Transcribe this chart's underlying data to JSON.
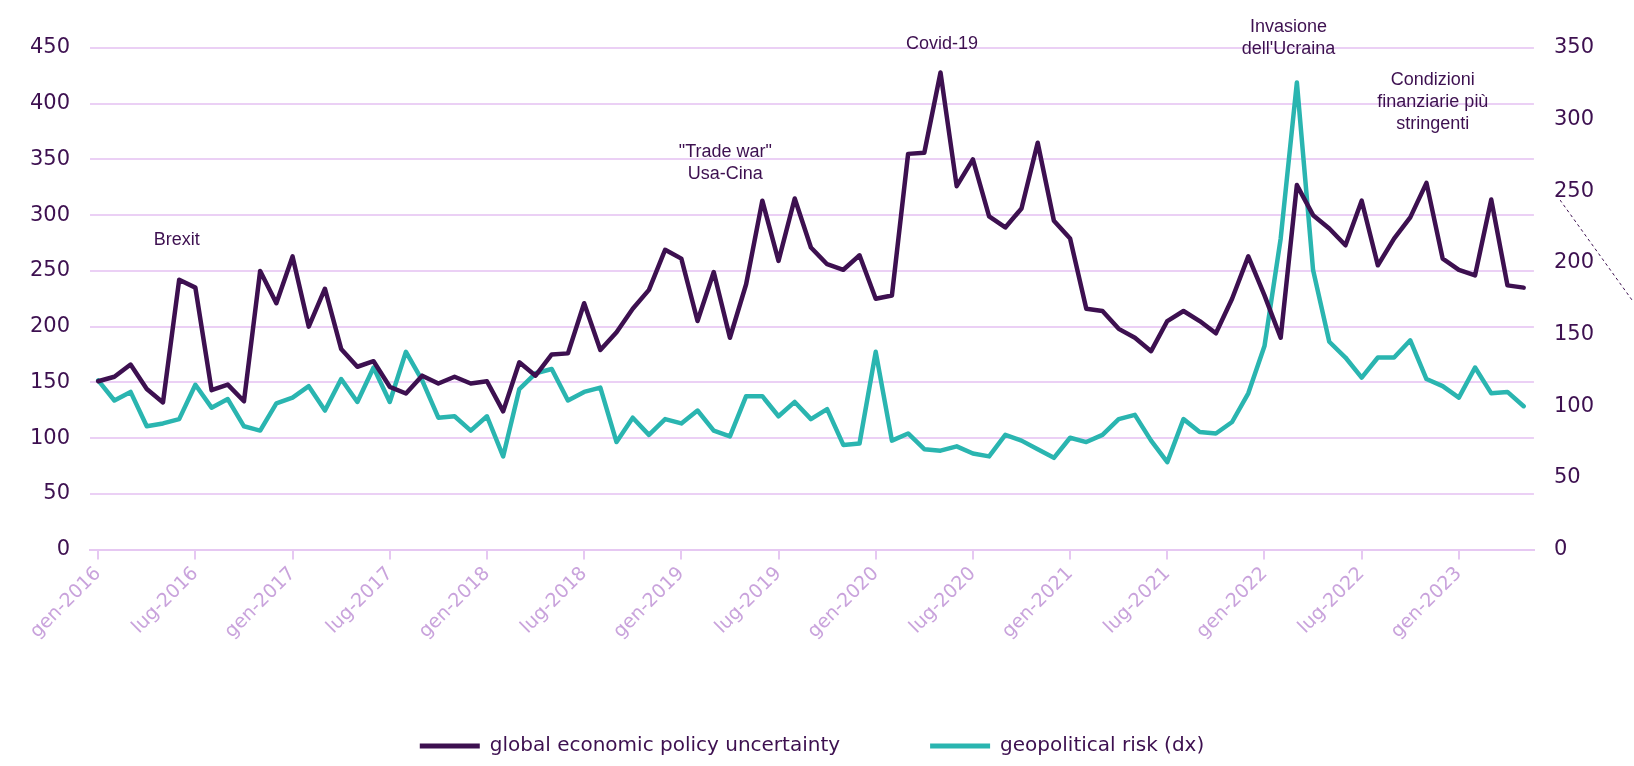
{
  "chart_data": {
    "type": "line",
    "x": [
      "2016-01",
      "2016-02",
      "2016-03",
      "2016-04",
      "2016-05",
      "2016-06",
      "2016-07",
      "2016-08",
      "2016-09",
      "2016-10",
      "2016-11",
      "2016-12",
      "2017-01",
      "2017-02",
      "2017-03",
      "2017-04",
      "2017-05",
      "2017-06",
      "2017-07",
      "2017-08",
      "2017-09",
      "2017-10",
      "2017-11",
      "2017-12",
      "2018-01",
      "2018-02",
      "2018-03",
      "2018-04",
      "2018-05",
      "2018-06",
      "2018-07",
      "2018-08",
      "2018-09",
      "2018-10",
      "2018-11",
      "2018-12",
      "2019-01",
      "2019-02",
      "2019-03",
      "2019-04",
      "2019-05",
      "2019-06",
      "2019-07",
      "2019-08",
      "2019-09",
      "2019-10",
      "2019-11",
      "2019-12",
      "2020-01",
      "2020-02",
      "2020-03",
      "2020-04",
      "2020-05",
      "2020-06",
      "2020-07",
      "2020-08",
      "2020-09",
      "2020-10",
      "2020-11",
      "2020-12",
      "2021-01",
      "2021-02",
      "2021-03",
      "2021-04",
      "2021-05",
      "2021-06",
      "2021-07",
      "2021-08",
      "2021-09",
      "2021-10",
      "2021-11",
      "2021-12",
      "2022-01",
      "2022-02",
      "2022-03",
      "2022-04",
      "2022-05",
      "2022-06",
      "2022-07",
      "2022-08",
      "2022-09",
      "2022-10",
      "2022-11",
      "2022-12",
      "2023-01",
      "2023-02",
      "2023-03",
      "2023-04",
      "2023-05"
    ],
    "series": [
      {
        "name": "global economic policy uncertainty",
        "color": "#3d1050",
        "values": [
          151,
          155,
          166,
          144,
          132,
          242,
          235,
          143,
          148,
          133,
          250,
          221,
          263,
          200,
          234,
          180,
          164,
          169,
          146,
          140,
          156,
          149,
          155,
          149,
          151,
          124,
          168,
          156,
          175,
          176,
          221,
          179,
          195,
          216,
          233,
          269,
          261,
          205,
          249,
          190,
          238,
          313,
          259,
          315,
          271,
          256,
          251,
          264,
          225,
          228,
          355,
          356,
          428,
          326,
          350,
          299,
          289,
          306,
          365,
          295,
          279,
          216,
          214,
          198,
          190,
          178,
          205,
          214,
          205,
          194,
          225,
          263,
          228,
          190,
          327,
          300,
          288,
          273,
          313,
          255,
          279,
          298,
          329,
          261,
          251,
          246,
          314,
          237,
          235
        ]
      },
      {
        "name": "geopolitical risk (dx)",
        "color": "#2ab5b0",
        "axis": "y2",
        "values": [
          118,
          104,
          110,
          86,
          88,
          91,
          115,
          99,
          105,
          86,
          83,
          102,
          106,
          114,
          97,
          119,
          103,
          127,
          103,
          138,
          118,
          92,
          93,
          83,
          93,
          65,
          112,
          123,
          126,
          104,
          110,
          113,
          75,
          92,
          80,
          91,
          88,
          97,
          83,
          79,
          107,
          107,
          93,
          103,
          91,
          98,
          73,
          74,
          138,
          76,
          81,
          70,
          69,
          72,
          67,
          65,
          80,
          76,
          70,
          64,
          78,
          75,
          80,
          91,
          94,
          76,
          61,
          91,
          82,
          81,
          89,
          109,
          142,
          217,
          326,
          195,
          145,
          134,
          120,
          134,
          134,
          146,
          119,
          114,
          106,
          127,
          109,
          110,
          100
        ]
      }
    ],
    "xlim": [
      "2015-12-16",
      "2023-05-20"
    ],
    "xticks": [
      {
        "value": "2016-01",
        "label": "gen-2016"
      },
      {
        "value": "2016-07",
        "label": "lug-2016"
      },
      {
        "value": "2017-01",
        "label": "gen-2017"
      },
      {
        "value": "2017-07",
        "label": "lug-2017"
      },
      {
        "value": "2018-01",
        "label": "gen-2018"
      },
      {
        "value": "2018-07",
        "label": "lug-2018"
      },
      {
        "value": "2019-01",
        "label": "gen-2019"
      },
      {
        "value": "2019-07",
        "label": "lug-2019"
      },
      {
        "value": "2020-01",
        "label": "gen-2020"
      },
      {
        "value": "2020-07",
        "label": "lug-2020"
      },
      {
        "value": "2021-01",
        "label": "gen-2021"
      },
      {
        "value": "2021-07",
        "label": "lug-2021"
      },
      {
        "value": "2022-01",
        "label": "gen-2022"
      },
      {
        "value": "2022-07",
        "label": "lug-2022"
      },
      {
        "value": "2023-01",
        "label": "gen-2023"
      }
    ],
    "ylim": [
      0,
      450
    ],
    "yticks": [
      0,
      50,
      100,
      150,
      200,
      250,
      300,
      350,
      400,
      450
    ],
    "y2lim": [
      0,
      350
    ],
    "y2ticks": [
      0,
      50,
      100,
      150,
      200,
      250,
      300,
      350
    ],
    "grid": "y",
    "legend": "bottom",
    "marker": "none",
    "line_style": "solid",
    "annotations": [
      "Brexit",
      "\"Trade war\" Usa-Cina",
      "Covid-19",
      "Invasione dell'Ucraina",
      "Condizioni finanziarie più stringenti"
    ]
  }
}
